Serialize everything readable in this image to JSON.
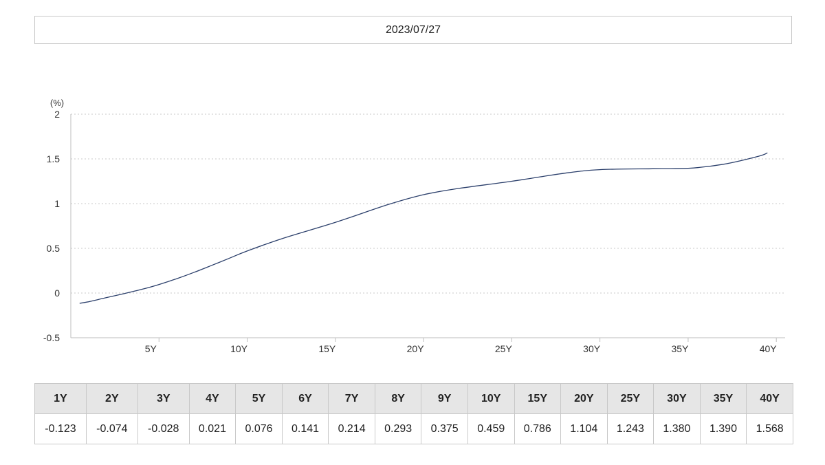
{
  "date": "2023/07/27",
  "colors": {
    "line": "#2b3f6b",
    "grid": "#c9c9c9",
    "header_bg": "#e6e6e6",
    "border": "#c8c8c8"
  },
  "chart_data": {
    "type": "line",
    "yunit": "(%)",
    "ylim": [
      -0.5,
      2
    ],
    "yticks": [
      "-0.5",
      "0",
      "0.5",
      "1",
      "1.5",
      "2"
    ],
    "xlim": [
      0,
      40.5
    ],
    "xticks": [
      "5Y",
      "10Y",
      "15Y",
      "20Y",
      "25Y",
      "30Y",
      "35Y",
      "40Y"
    ],
    "grid": true,
    "series": [
      {
        "x": [
          0.5,
          1,
          2,
          3,
          4,
          5,
          6,
          7,
          8,
          9,
          10,
          12,
          15,
          18,
          20,
          22,
          25,
          28,
          30,
          33,
          35,
          37,
          39,
          39.5
        ],
        "values": [
          -0.115,
          -0.098,
          -0.052,
          -0.008,
          0.04,
          0.095,
          0.16,
          0.232,
          0.31,
          0.39,
          0.47,
          0.61,
          0.79,
          0.99,
          1.1,
          1.17,
          1.25,
          1.34,
          1.38,
          1.39,
          1.395,
          1.44,
          1.53,
          1.568
        ]
      }
    ]
  },
  "table": {
    "headers": [
      "1Y",
      "2Y",
      "3Y",
      "4Y",
      "5Y",
      "6Y",
      "7Y",
      "8Y",
      "9Y",
      "10Y",
      "15Y",
      "20Y",
      "25Y",
      "30Y",
      "35Y",
      "40Y"
    ],
    "values": [
      "-0.123",
      "-0.074",
      "-0.028",
      "0.021",
      "0.076",
      "0.141",
      "0.214",
      "0.293",
      "0.375",
      "0.459",
      "0.786",
      "1.104",
      "1.243",
      "1.380",
      "1.390",
      "1.568"
    ]
  }
}
